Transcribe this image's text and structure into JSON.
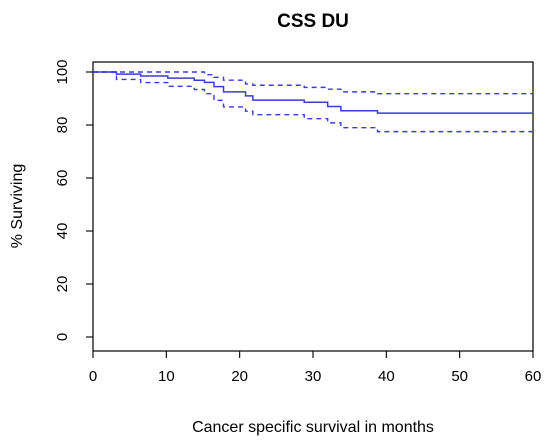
{
  "chart_data": {
    "type": "line",
    "title": "CSS DU",
    "xlabel": "Cancer specific survival in months",
    "ylabel": "% Surviving",
    "xlim": [
      0,
      60
    ],
    "ylim": [
      0,
      100
    ],
    "xticks": [
      0,
      10,
      20,
      30,
      40,
      50,
      60
    ],
    "yticks": [
      0,
      20,
      40,
      60,
      80,
      100
    ],
    "grid": false,
    "legend": "none",
    "color": "#3b3bd6",
    "series": [
      {
        "style": "solid",
        "x": [
          0,
          3.2,
          6.5,
          10.2,
          13.8,
          15.2,
          16.5,
          17.8,
          20.8,
          21.8,
          28.8,
          32.0,
          33.8,
          38.8,
          60
        ],
        "y": [
          100,
          99.2,
          98.5,
          97.7,
          96.9,
          96.1,
          94.5,
          92.5,
          91.0,
          89.4,
          88.6,
          87.0,
          85.4,
          84.5,
          84.5
        ]
      },
      {
        "style": "dashed",
        "x": [
          0,
          3.2,
          6.5,
          10.2,
          13.8,
          15.2,
          16.5,
          17.8,
          20.8,
          21.8,
          28.8,
          32.0,
          33.8,
          38.8,
          60
        ],
        "y": [
          100,
          100,
          100,
          100,
          100,
          99.0,
          98.0,
          96.9,
          95.5,
          95.0,
          94.2,
          93.5,
          92.5,
          91.8,
          91.8
        ]
      },
      {
        "style": "dashed",
        "x": [
          0,
          3.2,
          6.5,
          10.2,
          13.8,
          15.2,
          16.5,
          17.8,
          20.8,
          21.8,
          28.8,
          32.0,
          33.8,
          38.8,
          60
        ],
        "y": [
          100,
          97.2,
          96.0,
          94.6,
          93.4,
          91.8,
          89.3,
          86.8,
          85.2,
          83.9,
          82.4,
          80.8,
          79.0,
          77.5,
          77.5
        ]
      }
    ]
  }
}
